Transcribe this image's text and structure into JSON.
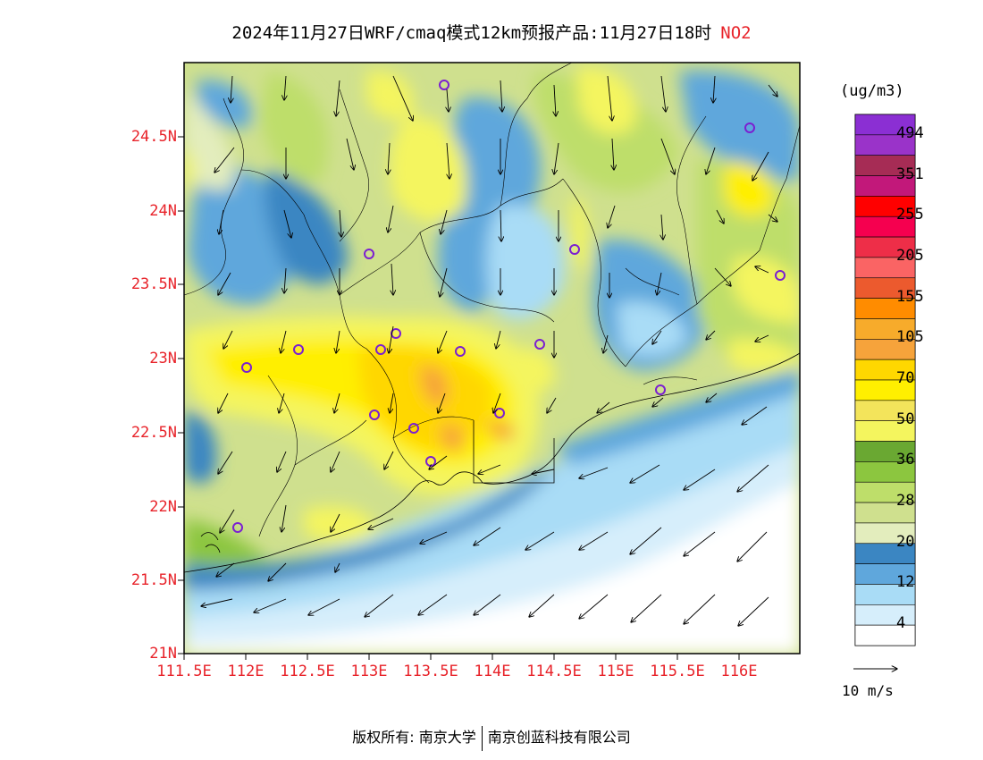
{
  "title": {
    "text": "2024年11月27日WRF/cmaq模式12km预报产品:11月27日18时",
    "variable": "NO2"
  },
  "map": {
    "lat_ticks": [
      "24.5N",
      "24N",
      "23.5N",
      "23N",
      "22.5N",
      "22N",
      "21.5N",
      "21N"
    ],
    "lon_ticks": [
      "111.5E",
      "112E",
      "112.5E",
      "113E",
      "113.5E",
      "114E",
      "114.5E",
      "115E",
      "115.5E",
      "116E"
    ]
  },
  "colorbar": {
    "unit": "(ug/m3)",
    "levels": [
      {
        "label": "494",
        "color": "#8b2fd3"
      },
      {
        "label": "",
        "color": "#9a33c9"
      },
      {
        "label": "351",
        "color": "#a62c55"
      },
      {
        "label": "",
        "color": "#c2187a"
      },
      {
        "label": "255",
        "color": "#ff0000"
      },
      {
        "label": "",
        "color": "#f5004f"
      },
      {
        "label": "205",
        "color": "#ee2e48"
      },
      {
        "label": "",
        "color": "#fa6464"
      },
      {
        "label": "155",
        "color": "#ec5a2e"
      },
      {
        "label": "",
        "color": "#ff8c00"
      },
      {
        "label": "105",
        "color": "#f7ab2b"
      },
      {
        "label": "",
        "color": "#f6a33b"
      },
      {
        "label": "70",
        "color": "#ffd700"
      },
      {
        "label": "",
        "color": "#ffef00"
      },
      {
        "label": "50",
        "color": "#f3e45b"
      },
      {
        "label": "",
        "color": "#f4f55e"
      },
      {
        "label": "36",
        "color": "#6aa832"
      },
      {
        "label": "",
        "color": "#8cc63f"
      },
      {
        "label": "28",
        "color": "#bede6a"
      },
      {
        "label": "",
        "color": "#cfe08e"
      },
      {
        "label": "20",
        "color": "#e3edbd"
      },
      {
        "label": "",
        "color": "#3b86c2"
      },
      {
        "label": "12",
        "color": "#5fa7dc"
      },
      {
        "label": "",
        "color": "#a9dcf6"
      },
      {
        "label": "4",
        "color": "#d6eefb"
      },
      {
        "label": "",
        "color": "#ffffff"
      }
    ]
  },
  "wind_reference": {
    "label": "10 m/s"
  },
  "footer": {
    "left": "版权所有: 南京大学",
    "right": "南京创蓝科技有限公司"
  }
}
